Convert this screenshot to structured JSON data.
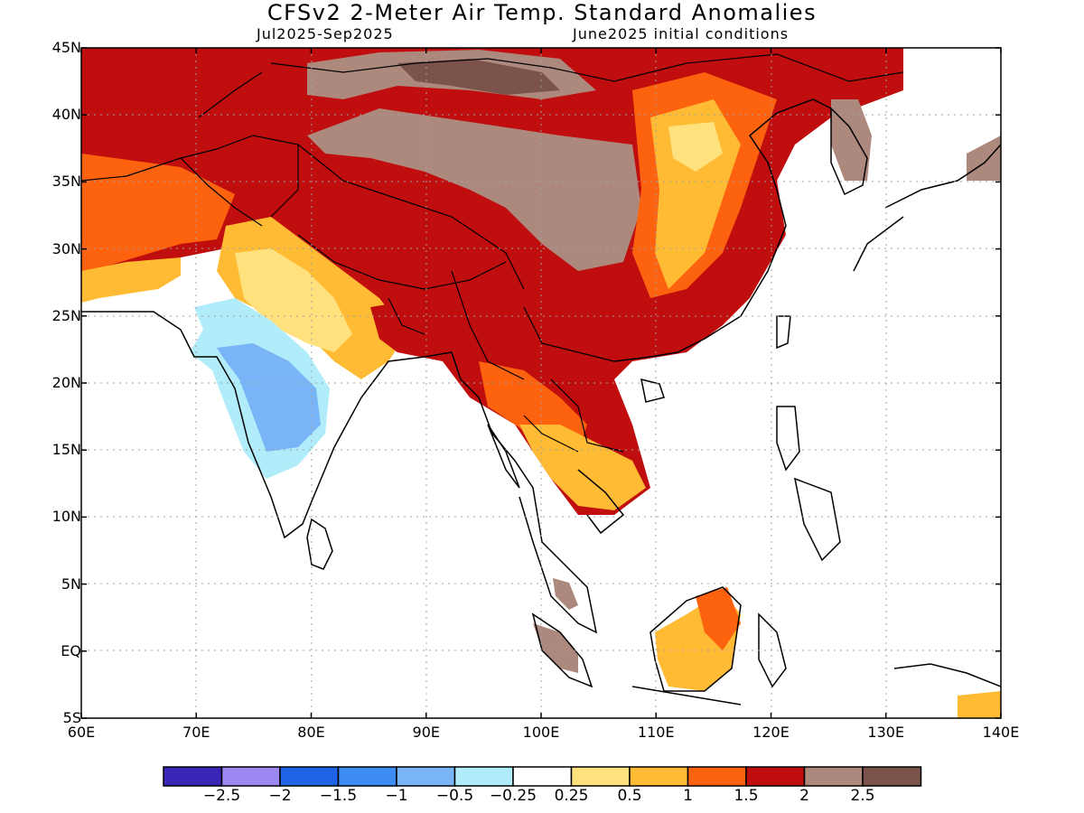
{
  "header": {
    "title": "CFSv2 2-Meter Air Temp. Standard Anomalies",
    "period": "Jul2025-Sep2025",
    "init": "June2025 initial conditions"
  },
  "axes": {
    "lat_labels": [
      "45N",
      "40N",
      "35N",
      "30N",
      "25N",
      "20N",
      "15N",
      "10N",
      "5N",
      "EQ",
      "5S"
    ],
    "lat_values": [
      45,
      40,
      35,
      30,
      25,
      20,
      15,
      10,
      5,
      0,
      -5
    ],
    "lon_labels": [
      "60E",
      "70E",
      "80E",
      "90E",
      "100E",
      "110E",
      "120E",
      "130E",
      "140E"
    ],
    "lon_values": [
      60,
      70,
      80,
      90,
      100,
      110,
      120,
      130,
      140
    ]
  },
  "colorbar": {
    "colors": [
      "#3a27b8",
      "#9d87f0",
      "#1f64e6",
      "#3c8cf2",
      "#78b4f6",
      "#b0ecfa",
      "#ffffff",
      "#ffe17d",
      "#ffbb34",
      "#fd620f",
      "#c00e0e",
      "#ad887d",
      "#7b534b"
    ],
    "labels": [
      "-2.5",
      "-2",
      "-1.5",
      "-1",
      "-0.5",
      "-0.25",
      "0.25",
      "0.5",
      "1",
      "1.5",
      "2",
      "2.5"
    ]
  },
  "colors": {
    "cold_core": "#78b4f6",
    "cold_edge": "#b0ecfa",
    "neutral": "#ffffff",
    "warm_light": "#ffe17d",
    "warm": "#ffbb34",
    "warm_strong": "#fd620f",
    "hot": "#c00e0e",
    "very_hot": "#ad887d",
    "extreme": "#7b534b"
  }
}
